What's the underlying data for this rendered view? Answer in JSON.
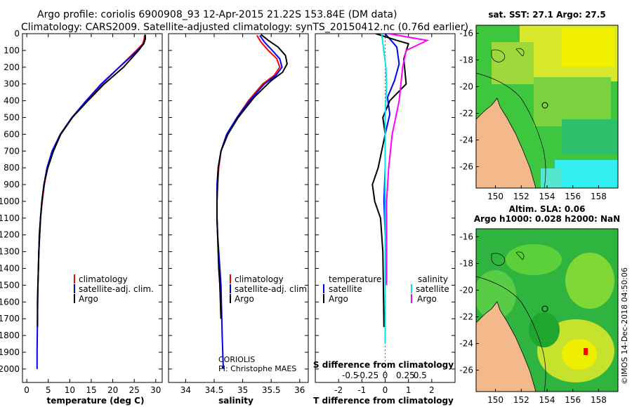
{
  "header": {
    "line1": "Argo profile: coriolis 6900908_93 12-Apr-2015 21.22S 153.84E (DM data)",
    "line2": "Climatology: CARS2009. Satellite-adjusted climatology: synTS_20150412.nc (0.76d earlier)"
  },
  "depth_ticks": [
    0,
    100,
    200,
    300,
    400,
    500,
    600,
    700,
    800,
    900,
    1000,
    1100,
    1200,
    1300,
    1400,
    1500,
    1600,
    1700,
    1800,
    1900,
    2000
  ],
  "colors": {
    "climatology": "#ff0000",
    "satellite": "#0000ff",
    "argo": "#000000",
    "sal_sat": "#00e5ee",
    "sal_argo": "#ff00ff",
    "land": "#f4b98a"
  },
  "chart_data": [
    {
      "type": "line",
      "name": "temperature-profile",
      "xlabel": "temperature (deg C)",
      "ylabel": "depth",
      "xlim": [
        -1,
        31.5
      ],
      "ylim": [
        2080,
        0
      ],
      "xticks": [
        0,
        5,
        10,
        15,
        20,
        25,
        30
      ],
      "legend": [
        "climatology",
        "satellite-adj. clim.",
        "Argo"
      ],
      "series": [
        {
          "name": "climatology",
          "color": "#ff0000",
          "x": [
            27.4,
            27.3,
            27.0,
            25.5,
            21.5,
            17.5,
            14.0,
            10.5,
            7.8,
            6.0,
            4.8,
            4.1,
            3.6,
            3.2,
            3.0,
            2.8,
            2.7,
            2.6,
            2.5,
            2.5
          ],
          "y": [
            10,
            30,
            60,
            100,
            200,
            300,
            400,
            500,
            600,
            700,
            800,
            900,
            1000,
            1100,
            1200,
            1300,
            1400,
            1500,
            1600,
            1750
          ]
        },
        {
          "name": "satellite-adj. clim.",
          "color": "#0000ff",
          "x": [
            27.6,
            27.5,
            27.2,
            25.8,
            21.5,
            17.3,
            13.8,
            10.5,
            7.8,
            5.9,
            4.7,
            4.0,
            3.5,
            3.2,
            2.9,
            2.8,
            2.7,
            2.6,
            2.5,
            2.4,
            2.4
          ],
          "y": [
            10,
            30,
            60,
            100,
            200,
            300,
            400,
            500,
            600,
            700,
            800,
            900,
            1000,
            1100,
            1200,
            1300,
            1400,
            1500,
            1700,
            1900,
            2000
          ]
        },
        {
          "name": "Argo",
          "color": "#000000",
          "x": [
            27.5,
            27.6,
            27.2,
            26.0,
            22.5,
            18.0,
            14.2,
            10.6,
            7.9,
            6.2,
            4.9,
            4.0,
            3.5,
            3.2,
            3.0,
            2.8,
            2.7,
            2.6,
            2.5,
            2.5
          ],
          "y": [
            5,
            30,
            60,
            100,
            200,
            300,
            400,
            500,
            600,
            700,
            800,
            900,
            1000,
            1100,
            1200,
            1300,
            1400,
            1500,
            1600,
            1750
          ]
        }
      ]
    },
    {
      "type": "line",
      "name": "salinity-profile",
      "xlabel": "salinity",
      "ylabel": "depth",
      "xlim": [
        33.7,
        36.15
      ],
      "ylim": [
        2080,
        0
      ],
      "xticks": [
        34,
        34.5,
        35,
        35.5,
        36
      ],
      "xtick_labels": [
        "34",
        "34.5",
        "35",
        "35.5",
        "36"
      ],
      "legend": [
        "climatology",
        "satellite-adj. clim.",
        "Argo"
      ],
      "annotation": [
        "CORIOLIS",
        "PI: Christophe MAES"
      ],
      "series": [
        {
          "name": "climatology",
          "color": "#ff0000",
          "x": [
            35.25,
            35.32,
            35.45,
            35.6,
            35.65,
            35.55,
            35.35,
            35.1,
            34.9,
            34.72,
            34.62,
            34.58,
            34.56,
            34.55,
            34.55,
            34.56,
            34.57,
            34.59,
            34.6,
            34.62
          ],
          "y": [
            10,
            50,
            100,
            150,
            200,
            250,
            300,
            400,
            500,
            600,
            700,
            800,
            900,
            1000,
            1100,
            1200,
            1300,
            1400,
            1500,
            1700
          ]
        },
        {
          "name": "satellite-adj. clim.",
          "color": "#0000ff",
          "x": [
            35.3,
            35.38,
            35.52,
            35.65,
            35.69,
            35.58,
            35.38,
            35.12,
            34.9,
            34.72,
            34.62,
            34.57,
            34.55,
            34.55,
            34.55,
            34.56,
            34.58,
            34.6,
            34.62,
            34.64,
            34.66
          ],
          "y": [
            10,
            50,
            100,
            150,
            200,
            250,
            300,
            400,
            500,
            600,
            700,
            800,
            900,
            1000,
            1100,
            1200,
            1300,
            1400,
            1500,
            1800,
            2000
          ]
        },
        {
          "name": "Argo",
          "color": "#000000",
          "x": [
            35.32,
            35.45,
            35.62,
            35.75,
            35.78,
            35.7,
            35.5,
            35.2,
            34.92,
            34.74,
            34.62,
            34.57,
            34.56,
            34.55,
            34.55,
            34.56,
            34.57,
            34.58,
            34.6,
            34.62
          ],
          "y": [
            5,
            40,
            80,
            130,
            180,
            230,
            280,
            380,
            500,
            600,
            700,
            800,
            900,
            1000,
            1100,
            1200,
            1300,
            1400,
            1500,
            1700
          ]
        }
      ]
    },
    {
      "type": "line",
      "name": "difference-profile",
      "xlabel": "T difference from climatology",
      "xlabel_top": "S difference from climatology",
      "xlim": [
        -3,
        3
      ],
      "ylim": [
        2080,
        0
      ],
      "xticks": [
        -2,
        -1,
        0,
        1,
        2
      ],
      "xticks_s": [
        -0.5,
        -0.25,
        0,
        0.25,
        0.5
      ],
      "xtick_s_labels": [
        "-0.5",
        "-0.25",
        "0",
        "0.25",
        "0.5"
      ],
      "legend_temperature": [
        "temperature",
        "satellite",
        "Argo"
      ],
      "legend_salinity": [
        "salinity",
        "satellite",
        "Argo"
      ],
      "series": [
        {
          "name": "T satellite",
          "color": "#0000ff",
          "x": [
            0.0,
            0.5,
            0.6,
            0.4,
            0.1,
            0.2,
            0.0,
            0.0,
            -0.05,
            0.0,
            0.0,
            0.0
          ],
          "y": [
            0,
            80,
            180,
            280,
            380,
            480,
            600,
            800,
            1000,
            1200,
            1500,
            1750
          ]
        },
        {
          "name": "T Argo",
          "color": "#000000",
          "x": [
            -0.4,
            0.5,
            1.0,
            0.8,
            0.9,
            0.2,
            -0.1,
            0.0,
            -0.15,
            -0.3,
            -0.55,
            -0.45,
            -0.2,
            -0.1,
            -0.05
          ],
          "y": [
            0,
            40,
            60,
            150,
            300,
            400,
            500,
            600,
            700,
            800,
            900,
            1000,
            1100,
            1300,
            1750
          ]
        },
        {
          "name": "S satellite",
          "color": "#00e5ee",
          "x": [
            -0.05,
            -0.02,
            0.01,
            0.02,
            0.0,
            0.0,
            0.0,
            0.0,
            0.0,
            0.0
          ],
          "y": [
            0,
            100,
            200,
            300,
            500,
            800,
            1000,
            1300,
            1600,
            1850
          ]
        },
        {
          "name": "S Argo",
          "color": "#ff00ff",
          "x": [
            0.05,
            0.6,
            0.3,
            0.25,
            0.2,
            0.1,
            0.05,
            0.02,
            0.02,
            0.02
          ],
          "y": [
            0,
            40,
            100,
            200,
            400,
            600,
            800,
            1000,
            1300,
            1500
          ]
        }
      ]
    },
    {
      "type": "heatmap",
      "name": "sst-map",
      "title": "sat. SST: 27.1  Argo: 27.5",
      "xticks": [
        150,
        152,
        154,
        156,
        158
      ],
      "yticks": [
        -16,
        -18,
        -20,
        -22,
        -24,
        -26
      ],
      "xlim": [
        148.5,
        159.5
      ],
      "ylim": [
        -27.6,
        -15.4
      ],
      "argo_position": {
        "lon": 153.84,
        "lat": -21.22
      }
    },
    {
      "type": "heatmap",
      "name": "sla-map",
      "title": "Altim. SLA: 0.06",
      "subtitle": "Argo h1000: 0.028 h2000: NaN",
      "xticks": [
        150,
        152,
        154,
        156,
        158
      ],
      "yticks": [
        -16,
        -18,
        -20,
        -22,
        -24,
        -26
      ],
      "xlim": [
        148.5,
        159.5
      ],
      "ylim": [
        -27.6,
        -15.4
      ],
      "marker": {
        "lon": 157.0,
        "lat": -24.6
      }
    }
  ],
  "watermark": "©IMOS 14-Dec-2018 04:50:06"
}
